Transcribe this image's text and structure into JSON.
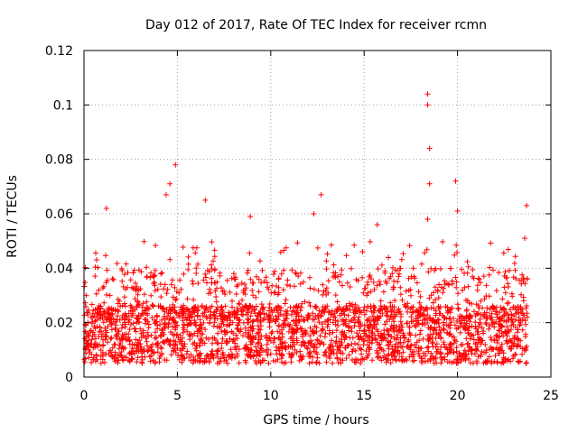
{
  "chart_data": {
    "type": "scatter",
    "title": "Day 012 of 2017, Rate Of TEC Index for receiver rcmn",
    "xlabel": "GPS time / hours",
    "ylabel": "ROTI / TECUs",
    "xlim": [
      0,
      25
    ],
    "ylim": [
      0,
      0.12
    ],
    "grid": true,
    "marker": "+",
    "color": "#ff0000",
    "x_ticks": [
      0,
      5,
      10,
      15,
      20,
      25
    ],
    "x_tick_labels": [
      "0",
      "5",
      "10",
      "15",
      "20",
      "25"
    ],
    "y_ticks": [
      0,
      0.02,
      0.04,
      0.06,
      0.08,
      0.1,
      0.12
    ],
    "y_tick_labels": [
      "0",
      "0.02",
      "0.04",
      "0.06",
      "0.08",
      "0.1",
      "0.12"
    ],
    "series": [
      {
        "name": "ROTI",
        "time_range_hours": [
          0,
          23.75
        ],
        "baseline_band": [
          0.005,
          0.03
        ],
        "notable_points": [
          {
            "x": 1.2,
            "y": 0.062
          },
          {
            "x": 4.6,
            "y": 0.071
          },
          {
            "x": 4.9,
            "y": 0.078
          },
          {
            "x": 4.4,
            "y": 0.067
          },
          {
            "x": 6.5,
            "y": 0.065
          },
          {
            "x": 8.9,
            "y": 0.059
          },
          {
            "x": 12.7,
            "y": 0.067
          },
          {
            "x": 12.3,
            "y": 0.06
          },
          {
            "x": 15.7,
            "y": 0.056
          },
          {
            "x": 18.4,
            "y": 0.104
          },
          {
            "x": 18.4,
            "y": 0.1
          },
          {
            "x": 18.5,
            "y": 0.084
          },
          {
            "x": 18.5,
            "y": 0.071
          },
          {
            "x": 18.4,
            "y": 0.058
          },
          {
            "x": 19.9,
            "y": 0.072
          },
          {
            "x": 20.0,
            "y": 0.061
          },
          {
            "x": 23.7,
            "y": 0.063
          },
          {
            "x": 23.6,
            "y": 0.051
          }
        ]
      }
    ]
  }
}
